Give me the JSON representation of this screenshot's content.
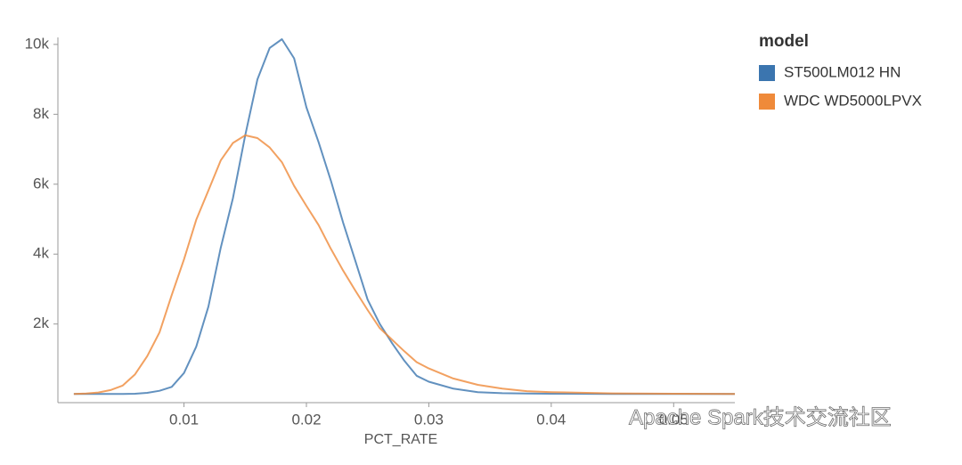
{
  "chart_data": {
    "type": "line",
    "xlabel": "PCT_RATE",
    "legend_title": "model",
    "legend_position": "right",
    "watermark": "Apache Spark技术交流社区",
    "x": [
      0.001,
      0.002,
      0.003,
      0.004,
      0.005,
      0.006,
      0.007,
      0.008,
      0.009,
      0.01,
      0.011,
      0.012,
      0.013,
      0.014,
      0.015,
      0.016,
      0.017,
      0.018,
      0.019,
      0.02,
      0.021,
      0.022,
      0.023,
      0.024,
      0.025,
      0.026,
      0.027,
      0.028,
      0.029,
      0.03,
      0.032,
      0.034,
      0.036,
      0.038,
      0.04,
      0.045,
      0.05,
      0.055
    ],
    "series": [
      {
        "name": "ST500LM012 HN",
        "color": "#3b75af",
        "values": [
          0,
          0,
          0,
          0,
          0,
          5,
          30,
          90,
          200,
          600,
          1350,
          2500,
          4180,
          5600,
          7400,
          9000,
          9900,
          10150,
          9600,
          8200,
          7200,
          6100,
          4900,
          3800,
          2700,
          2000,
          1450,
          950,
          520,
          350,
          150,
          50,
          20,
          10,
          5,
          0,
          0,
          0
        ]
      },
      {
        "name": "WDC WD5000LPVX",
        "color": "#ef8a3a",
        "values": [
          0,
          10,
          40,
          110,
          240,
          560,
          1080,
          1760,
          2830,
          3850,
          4980,
          5820,
          6680,
          7180,
          7400,
          7320,
          7050,
          6630,
          5950,
          5380,
          4830,
          4150,
          3530,
          2950,
          2400,
          1880,
          1550,
          1220,
          910,
          730,
          440,
          260,
          150,
          80,
          50,
          15,
          5,
          0
        ]
      }
    ],
    "xlim": [
      -0.0003,
      0.055
    ],
    "xticks": [
      0.01,
      0.02,
      0.03,
      0.04,
      0.05
    ],
    "ylim": [
      -250,
      10200
    ],
    "yticks": [
      {
        "value": 2000,
        "label": "2k"
      },
      {
        "value": 4000,
        "label": "4k"
      },
      {
        "value": 6000,
        "label": "6k"
      },
      {
        "value": 8000,
        "label": "8k"
      },
      {
        "value": 10000,
        "label": "10k"
      }
    ]
  }
}
